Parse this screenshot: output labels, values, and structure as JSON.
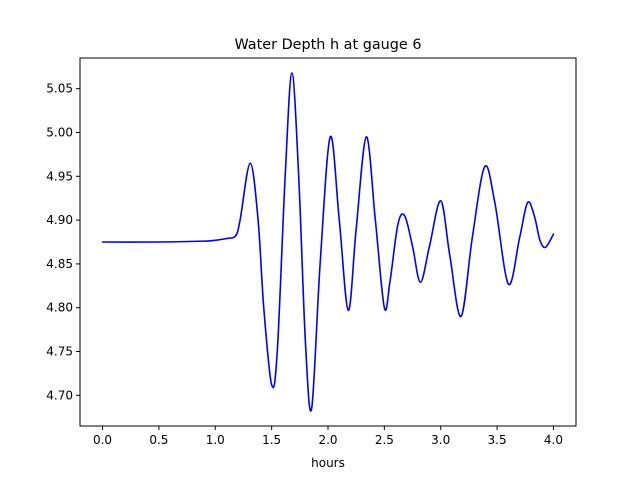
{
  "chart_data": {
    "type": "line",
    "title": "Water Depth h at gauge 6",
    "xlabel": "hours",
    "ylabel": "",
    "xlim": [
      -0.2,
      4.2
    ],
    "ylim": [
      4.665,
      5.085
    ],
    "grid": false,
    "legend": "none",
    "x_ticks": [
      0.0,
      0.5,
      1.0,
      1.5,
      2.0,
      2.5,
      3.0,
      3.5,
      4.0
    ],
    "x_tick_labels": [
      "0.0",
      "0.5",
      "1.0",
      "1.5",
      "2.0",
      "2.5",
      "3.0",
      "3.5",
      "4.0"
    ],
    "y_ticks": [
      4.7,
      4.75,
      4.8,
      4.85,
      4.9,
      4.95,
      5.0,
      5.05
    ],
    "y_tick_labels": [
      "4.70",
      "4.75",
      "4.80",
      "4.85",
      "4.90",
      "4.95",
      "5.00",
      "5.05"
    ],
    "series": [
      {
        "color": "#0000ff",
        "x": [
          0.0,
          0.5,
          0.9,
          1.0,
          1.1,
          1.18,
          1.22,
          1.31,
          1.38,
          1.43,
          1.5,
          1.55,
          1.62,
          1.68,
          1.74,
          1.8,
          1.855,
          1.93,
          2.02,
          2.1,
          2.18,
          2.25,
          2.34,
          2.42,
          2.5,
          2.55,
          2.62,
          2.68,
          2.75,
          2.82,
          2.9,
          3.0,
          3.08,
          3.18,
          3.28,
          3.39,
          3.48,
          3.6,
          3.7,
          3.77,
          3.83,
          3.88,
          3.93,
          4.0
        ],
        "y": [
          4.875,
          4.875,
          4.876,
          4.877,
          4.879,
          4.882,
          4.9,
          4.965,
          4.9,
          4.8,
          4.712,
          4.75,
          4.95,
          5.068,
          4.95,
          4.76,
          4.685,
          4.85,
          4.995,
          4.9,
          4.797,
          4.89,
          4.995,
          4.9,
          4.8,
          4.83,
          4.895,
          4.905,
          4.87,
          4.829,
          4.87,
          4.922,
          4.86,
          4.79,
          4.88,
          4.961,
          4.92,
          4.827,
          4.88,
          4.92,
          4.905,
          4.877,
          4.869,
          4.884
        ]
      }
    ]
  }
}
